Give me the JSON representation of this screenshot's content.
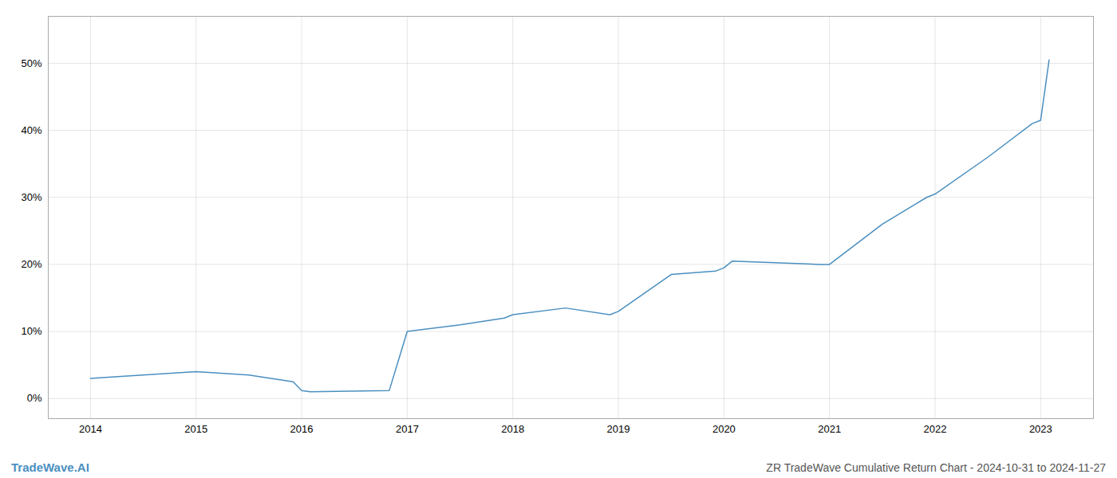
{
  "chart_data": {
    "type": "line",
    "title": "ZR TradeWave Cumulative Return Chart - 2024-10-31 to 2024-11-27",
    "annotations": [
      {
        "text": "TradeWave.AI",
        "color": "#4a8fc0"
      }
    ],
    "x": [
      2014.0,
      2014.08,
      2015.0,
      2015.5,
      2015.92,
      2016.0,
      2016.08,
      2016.83,
      2017.0,
      2017.5,
      2017.92,
      2018.0,
      2018.5,
      2018.92,
      2019.0,
      2019.5,
      2019.92,
      2020.0,
      2020.08,
      2020.92,
      2021.0,
      2021.5,
      2021.92,
      2022.0,
      2022.5,
      2022.92,
      2023.0,
      2023.08
    ],
    "values": [
      3.0,
      3.1,
      4.0,
      3.5,
      2.5,
      1.2,
      1.0,
      1.2,
      10.0,
      11.0,
      12.0,
      12.5,
      13.5,
      12.5,
      13.0,
      18.5,
      19.0,
      19.5,
      20.5,
      20.0,
      20.0,
      26.0,
      30.0,
      30.5,
      36.0,
      41.0,
      41.5,
      50.5
    ],
    "color": "#4a8fc0",
    "xlim": [
      2013.6,
      2023.5
    ],
    "xticks": [
      2014,
      2015,
      2016,
      2017,
      2018,
      2019,
      2020,
      2021,
      2022,
      2023
    ],
    "ylim": [
      -3,
      57
    ],
    "yticks": [
      {
        "value": 0,
        "label": "0%"
      },
      {
        "value": 10,
        "label": "10%"
      },
      {
        "value": 20,
        "label": "20%"
      },
      {
        "value": 30,
        "label": "30%"
      },
      {
        "value": 40,
        "label": "40%"
      },
      {
        "value": 50,
        "label": "50%"
      }
    ],
    "grid": true
  }
}
